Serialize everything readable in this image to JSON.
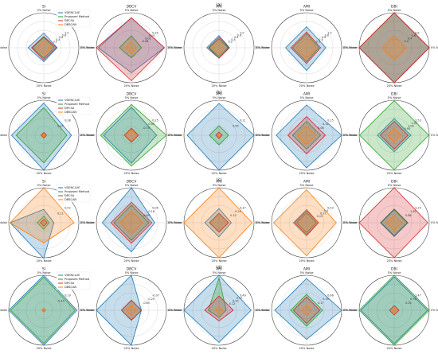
{
  "figure": {
    "row_labels": [
      "(a)",
      "(b)",
      "(c)",
      "(d)"
    ],
    "axis_labels": [
      "5% Noise",
      "0% Noise",
      "20% Noise",
      "10% Noise"
    ],
    "legend": [
      "VDENCLUE",
      "Proposed Method",
      "DPCSA",
      "DBSCAN"
    ],
    "colors": {
      "VDENCLUE": "#1f77b4",
      "Proposed Method": "#2ca02c",
      "DPCSA": "#d62728",
      "DBSCAN": "#ff7f0e"
    }
  },
  "chart_data": [
    {
      "type": "radar",
      "row": "(a)",
      "title": "SI",
      "rlim": [
        0,
        1.0
      ],
      "ticks": [
        "0.2",
        "0.4",
        "0.6",
        "0.8",
        "1.0"
      ],
      "axes": [
        "5% Noise",
        "0% Noise",
        "20% Noise",
        "10% Noise"
      ],
      "series": [
        {
          "name": "VDENCLUE",
          "values": [
            0.42,
            0.38,
            0.4,
            0.45
          ]
        },
        {
          "name": "Proposed Method",
          "values": [
            0.3,
            0.3,
            0.3,
            0.32
          ]
        },
        {
          "name": "DPCSA",
          "values": [
            0.32,
            0.36,
            0.35,
            0.35
          ]
        },
        {
          "name": "DBSCAN",
          "values": [
            0.2,
            0.22,
            0.2,
            0.22
          ]
        }
      ]
    },
    {
      "type": "radar",
      "row": "(a)",
      "title": "DBCV",
      "rlim": [
        0,
        0.35
      ],
      "ticks": [
        "-0.06",
        "0.01",
        "0.15",
        "0.35"
      ],
      "axes": [
        "5% Noise",
        "0% Noise",
        "20% Noise",
        "10% Noise"
      ],
      "series": [
        {
          "name": "VDENCLUE",
          "values": [
            0.3,
            0.33,
            0.25,
            0.33
          ]
        },
        {
          "name": "Proposed Method",
          "values": [
            0.12,
            0.1,
            0.1,
            0.12
          ]
        },
        {
          "name": "DPCSA",
          "values": [
            0.3,
            0.33,
            0.33,
            0.35
          ]
        },
        {
          "name": "DBSCAN",
          "values": [
            0.06,
            0.05,
            0.06,
            0.06
          ]
        }
      ]
    },
    {
      "type": "radar",
      "row": "(a)",
      "title": "ARI",
      "rlim": [
        0,
        1.0
      ],
      "ticks": [
        "0.2",
        "0.4",
        "0.6",
        "0.8",
        "1.0"
      ],
      "axes": [
        "5% Noise",
        "0% Noise",
        "20% Noise",
        "10% Noise"
      ],
      "series": [
        {
          "name": "VDENCLUE",
          "values": [
            0.35,
            0.3,
            0.3,
            0.35
          ]
        },
        {
          "name": "Proposed Method",
          "values": [
            0.25,
            0.25,
            0.25,
            0.28
          ]
        },
        {
          "name": "DPCSA",
          "values": [
            0.3,
            0.28,
            0.3,
            0.3
          ]
        },
        {
          "name": "DBSCAN",
          "values": [
            0.18,
            0.16,
            0.18,
            0.2
          ]
        }
      ]
    },
    {
      "type": "radar",
      "row": "(a)",
      "title": "AMI",
      "rlim": [
        0,
        1.0
      ],
      "ticks": [
        "0.2",
        "0.4",
        "0.6",
        "0.8",
        "1.0"
      ],
      "axes": [
        "5% Noise",
        "0% Noise",
        "20% Noise",
        "10% Noise"
      ],
      "series": [
        {
          "name": "VDENCLUE",
          "values": [
            0.6,
            0.55,
            0.65,
            0.6
          ]
        },
        {
          "name": "Proposed Method",
          "values": [
            0.4,
            0.35,
            0.4,
            0.4
          ]
        },
        {
          "name": "DPCSA",
          "values": [
            0.45,
            0.4,
            0.45,
            0.45
          ]
        },
        {
          "name": "DBSCAN",
          "values": [
            0.3,
            0.28,
            0.3,
            0.3
          ]
        }
      ]
    },
    {
      "type": "radar",
      "row": "(a)",
      "title": "DBI",
      "rlim": [
        0,
        1.0
      ],
      "ticks": [
        "0.2",
        "0.4",
        "0.6",
        "0.8"
      ],
      "axes": [
        "5% Noise",
        "0% Noise",
        "20% Noise",
        "10% Noise"
      ],
      "series": [
        {
          "name": "VDENCLUE",
          "values": [
            1.0,
            1.0,
            1.0,
            1.0
          ]
        },
        {
          "name": "Proposed Method",
          "values": [
            1.0,
            1.0,
            1.0,
            1.0
          ]
        },
        {
          "name": "DPCSA",
          "values": [
            1.0,
            1.0,
            1.0,
            1.0
          ]
        },
        {
          "name": "DBSCAN",
          "values": [
            0.35,
            0.35,
            0.35,
            0.35
          ]
        }
      ]
    },
    {
      "type": "radar",
      "row": "(b)",
      "title": "SI",
      "rlim": [
        0,
        0.38
      ],
      "ticks": [
        "0.25",
        "0.38"
      ],
      "axes": [
        "5% Noise",
        "0% Noise",
        "20% Noise",
        "10% Noise"
      ],
      "series": [
        {
          "name": "VDENCLUE",
          "values": [
            0.35,
            0.3,
            0.38,
            0.35
          ]
        },
        {
          "name": "Proposed Method",
          "values": [
            0.3,
            0.25,
            0.3,
            0.3
          ]
        },
        {
          "name": "DPCSA",
          "values": [
            0.03,
            0.03,
            0.03,
            0.03
          ]
        },
        {
          "name": "DBSCAN",
          "values": [
            0.02,
            0.02,
            0.02,
            0.02
          ]
        }
      ]
    },
    {
      "type": "radar",
      "row": "(b)",
      "title": "DBCV",
      "rlim": [
        0,
        0.25
      ],
      "ticks": [
        "-0.75",
        "-0.05",
        "0.25"
      ],
      "axes": [
        "5% Noise",
        "0% Noise",
        "20% Noise",
        "10% Noise"
      ],
      "series": [
        {
          "name": "VDENCLUE",
          "values": [
            0.2,
            0.18,
            0.2,
            0.2
          ]
        },
        {
          "name": "Proposed Method",
          "values": [
            0.22,
            0.25,
            0.22,
            0.22
          ]
        },
        {
          "name": "DPCSA",
          "values": [
            0.05,
            0.05,
            0.05,
            0.05
          ]
        },
        {
          "name": "DBSCAN",
          "values": [
            0.04,
            0.04,
            0.04,
            0.04
          ]
        }
      ]
    },
    {
      "type": "radar",
      "row": "(b)",
      "title": "ARI",
      "rlim": [
        0,
        0.11
      ],
      "ticks": [
        "0.05",
        "0.11"
      ],
      "axes": [
        "5% Noise",
        "0% Noise",
        "20% Noise",
        "10% Noise"
      ],
      "series": [
        {
          "name": "VDENCLUE",
          "values": [
            0.1,
            0.11,
            0.11,
            0.1
          ]
        },
        {
          "name": "Proposed Method",
          "values": [
            0.03,
            0.03,
            0.03,
            0.03
          ]
        },
        {
          "name": "DPCSA",
          "values": [
            0.01,
            0.01,
            0.01,
            0.01
          ]
        },
        {
          "name": "DBSCAN",
          "values": [
            0.005,
            0.005,
            0.005,
            0.005
          ]
        }
      ]
    },
    {
      "type": "radar",
      "row": "(b)",
      "title": "AMI",
      "rlim": [
        0,
        0.15
      ],
      "ticks": [
        "0.06",
        "0.12",
        "0.15"
      ],
      "axes": [
        "5% Noise",
        "0% Noise",
        "20% Noise",
        "10% Noise"
      ],
      "series": [
        {
          "name": "VDENCLUE",
          "values": [
            0.13,
            0.15,
            0.14,
            0.13
          ]
        },
        {
          "name": "Proposed Method",
          "values": [
            0.06,
            0.06,
            0.06,
            0.06
          ]
        },
        {
          "name": "DPCSA",
          "values": [
            0.08,
            0.08,
            0.08,
            0.08
          ]
        },
        {
          "name": "DBSCAN",
          "values": [
            0.04,
            0.04,
            0.04,
            0.04
          ]
        }
      ]
    },
    {
      "type": "radar",
      "row": "(b)",
      "title": "DBI",
      "rlim": [
        0,
        2.53
      ],
      "ticks": [
        "0.95",
        "1.00",
        "2.01",
        "2.53"
      ],
      "axes": [
        "5% Noise",
        "0% Noise",
        "20% Noise",
        "10% Noise"
      ],
      "series": [
        {
          "name": "VDENCLUE",
          "values": [
            1.2,
            1.2,
            1.2,
            1.2
          ]
        },
        {
          "name": "Proposed Method",
          "values": [
            2.5,
            2.5,
            2.5,
            2.5
          ]
        },
        {
          "name": "DPCSA",
          "values": [
            1.0,
            1.0,
            1.0,
            1.0
          ]
        },
        {
          "name": "DBSCAN",
          "values": [
            0.5,
            0.5,
            0.5,
            0.5
          ]
        }
      ]
    },
    {
      "type": "radar",
      "row": "(c)",
      "title": "SI",
      "rlim": [
        0,
        0.52
      ],
      "ticks": [
        "0.11",
        "0.52"
      ],
      "axes": [
        "5% Noise",
        "0% Noise",
        "20% Noise",
        "10% Noise"
      ],
      "series": [
        {
          "name": "VDENCLUE",
          "values": [
            0.2,
            0.15,
            0.55,
            0.5
          ]
        },
        {
          "name": "Proposed Method",
          "values": [
            0.1,
            0.08,
            0.1,
            0.1
          ]
        },
        {
          "name": "DPCSA",
          "values": [
            0.05,
            0.05,
            0.05,
            0.05
          ]
        },
        {
          "name": "DBSCAN",
          "values": [
            0.52,
            0.45,
            0.3,
            0.5
          ]
        }
      ]
    },
    {
      "type": "radar",
      "row": "(c)",
      "title": "DBCV",
      "rlim": [
        0,
        0.06
      ],
      "ticks": [
        "-0.69",
        "-0.18",
        "0.06"
      ],
      "axes": [
        "5% Noise",
        "0% Noise",
        "20% Noise",
        "10% Noise"
      ],
      "series": [
        {
          "name": "VDENCLUE",
          "values": [
            0.06,
            0.04,
            0.05,
            0.05
          ]
        },
        {
          "name": "Proposed Method",
          "values": [
            0.03,
            0.03,
            0.03,
            0.03
          ]
        },
        {
          "name": "DPCSA",
          "values": [
            0.035,
            0.035,
            0.035,
            0.035
          ]
        },
        {
          "name": "DBSCAN",
          "values": [
            0.02,
            0.02,
            0.02,
            0.02
          ]
        }
      ]
    },
    {
      "type": "radar",
      "row": "(c)",
      "title": "ARI",
      "rlim": [
        0,
        0.37
      ],
      "ticks": [
        "0.13",
        "0.24",
        "0.37"
      ],
      "axes": [
        "5% Noise",
        "0% Noise",
        "20% Noise",
        "10% Noise"
      ],
      "series": [
        {
          "name": "VDENCLUE",
          "values": [
            0.15,
            0.13,
            0.15,
            0.15
          ]
        },
        {
          "name": "Proposed Method",
          "values": [
            0.1,
            0.1,
            0.1,
            0.1
          ]
        },
        {
          "name": "DPCSA",
          "values": [
            0.1,
            0.1,
            0.1,
            0.1
          ]
        },
        {
          "name": "DBSCAN",
          "values": [
            0.37,
            0.35,
            0.37,
            0.37
          ]
        }
      ]
    },
    {
      "type": "radar",
      "row": "(c)",
      "title": "AMI",
      "rlim": [
        0,
        0.53
      ],
      "ticks": [
        "0.15",
        "0.27",
        "0.4",
        "0.53"
      ],
      "axes": [
        "5% Noise",
        "0% Noise",
        "20% Noise",
        "10% Noise"
      ],
      "series": [
        {
          "name": "VDENCLUE",
          "values": [
            0.2,
            0.18,
            0.2,
            0.2
          ]
        },
        {
          "name": "Proposed Method",
          "values": [
            0.15,
            0.15,
            0.15,
            0.15
          ]
        },
        {
          "name": "DPCSA",
          "values": [
            0.18,
            0.18,
            0.18,
            0.18
          ]
        },
        {
          "name": "DBSCAN",
          "values": [
            0.5,
            0.45,
            0.5,
            0.5
          ]
        }
      ]
    },
    {
      "type": "radar",
      "row": "(c)",
      "title": "DBI",
      "rlim": [
        0,
        2.29
      ],
      "ticks": [
        "0.88",
        "1.82",
        "2.29"
      ],
      "axes": [
        "5% Noise",
        "0% Noise",
        "20% Noise",
        "10% Noise"
      ],
      "series": [
        {
          "name": "VDENCLUE",
          "values": [
            0.9,
            0.9,
            0.9,
            0.9
          ]
        },
        {
          "name": "Proposed Method",
          "values": [
            0.85,
            0.85,
            0.85,
            0.85
          ]
        },
        {
          "name": "DPCSA",
          "values": [
            2.29,
            2.2,
            2.29,
            2.29
          ]
        },
        {
          "name": "DBSCAN",
          "values": [
            0.5,
            0.5,
            0.5,
            0.5
          ]
        }
      ]
    },
    {
      "type": "radar",
      "row": "(d)",
      "title": "SI",
      "rlim": [
        0,
        0.19
      ],
      "ticks": [
        "-0.15",
        "0.19"
      ],
      "axes": [
        "5% Noise",
        "0% Noise",
        "20% Noise",
        "10% Noise"
      ],
      "series": [
        {
          "name": "VDENCLUE",
          "values": [
            0.19,
            0.18,
            0.19,
            0.19
          ]
        },
        {
          "name": "Proposed Method",
          "values": [
            0.18,
            0.17,
            0.18,
            0.18
          ]
        },
        {
          "name": "DPCSA",
          "values": [
            0.01,
            0.01,
            0.01,
            0.01
          ]
        },
        {
          "name": "DBSCAN",
          "values": [
            0.01,
            0.01,
            0.01,
            0.01
          ]
        }
      ]
    },
    {
      "type": "radar",
      "row": "(d)",
      "title": "DBCV",
      "rlim": [
        0,
        0.07
      ],
      "ticks": [
        "-0.85",
        "-0.29",
        "-0.07"
      ],
      "axes": [
        "5% Noise",
        "0% Noise",
        "20% Noise",
        "10% Noise"
      ],
      "series": [
        {
          "name": "VDENCLUE",
          "values": [
            0.07,
            0.02,
            0.07,
            0.07
          ]
        },
        {
          "name": "Proposed Method",
          "values": [
            0.02,
            0.02,
            0.02,
            0.02
          ]
        },
        {
          "name": "DPCSA",
          "values": [
            0.02,
            0.02,
            0.02,
            0.02
          ]
        },
        {
          "name": "DBSCAN",
          "values": [
            0.01,
            0.01,
            0.01,
            0.01
          ]
        }
      ]
    },
    {
      "type": "radar",
      "row": "(d)",
      "title": "ARI",
      "rlim": [
        0,
        0.49
      ],
      "ticks": [
        "0.12",
        "0.25",
        "0.37",
        "0.49"
      ],
      "axes": [
        "5% Noise",
        "0% Noise",
        "20% Noise",
        "10% Noise"
      ],
      "series": [
        {
          "name": "VDENCLUE",
          "values": [
            0.49,
            0.45,
            0.45,
            0.49
          ]
        },
        {
          "name": "Proposed Method",
          "values": [
            0.45,
            0.1,
            0.1,
            0.15
          ]
        },
        {
          "name": "DPCSA",
          "values": [
            0.2,
            0.2,
            0.15,
            0.2
          ]
        },
        {
          "name": "DBSCAN",
          "values": [
            0.05,
            0.05,
            0.05,
            0.05
          ]
        }
      ]
    },
    {
      "type": "radar",
      "row": "(d)",
      "title": "AMI",
      "rlim": [
        0,
        0.66
      ],
      "ticks": [
        "0.17",
        "0.33",
        "0.66"
      ],
      "axes": [
        "5% Noise",
        "0% Noise",
        "20% Noise",
        "10% Noise"
      ],
      "series": [
        {
          "name": "VDENCLUE",
          "values": [
            0.6,
            0.66,
            0.55,
            0.6
          ]
        },
        {
          "name": "Proposed Method",
          "values": [
            0.3,
            0.3,
            0.3,
            0.3
          ]
        },
        {
          "name": "DPCSA",
          "values": [
            0.25,
            0.25,
            0.25,
            0.25
          ]
        },
        {
          "name": "DBSCAN",
          "values": [
            0.1,
            0.1,
            0.1,
            0.1
          ]
        }
      ]
    },
    {
      "type": "radar",
      "row": "(d)",
      "title": "DBI",
      "rlim": [
        0,
        1.47
      ],
      "ticks": [
        "0.35",
        "0.76",
        "1.47"
      ],
      "axes": [
        "5% Noise",
        "0% Noise",
        "20% Noise",
        "10% Noise"
      ],
      "series": [
        {
          "name": "VDENCLUE",
          "values": [
            1.4,
            1.4,
            1.4,
            1.4
          ]
        },
        {
          "name": "Proposed Method",
          "values": [
            1.47,
            1.47,
            1.47,
            1.47
          ]
        },
        {
          "name": "DPCSA",
          "values": [
            0.2,
            0.2,
            0.2,
            0.2
          ]
        },
        {
          "name": "DBSCAN",
          "values": [
            0.1,
            0.1,
            0.1,
            0.1
          ]
        }
      ]
    }
  ]
}
